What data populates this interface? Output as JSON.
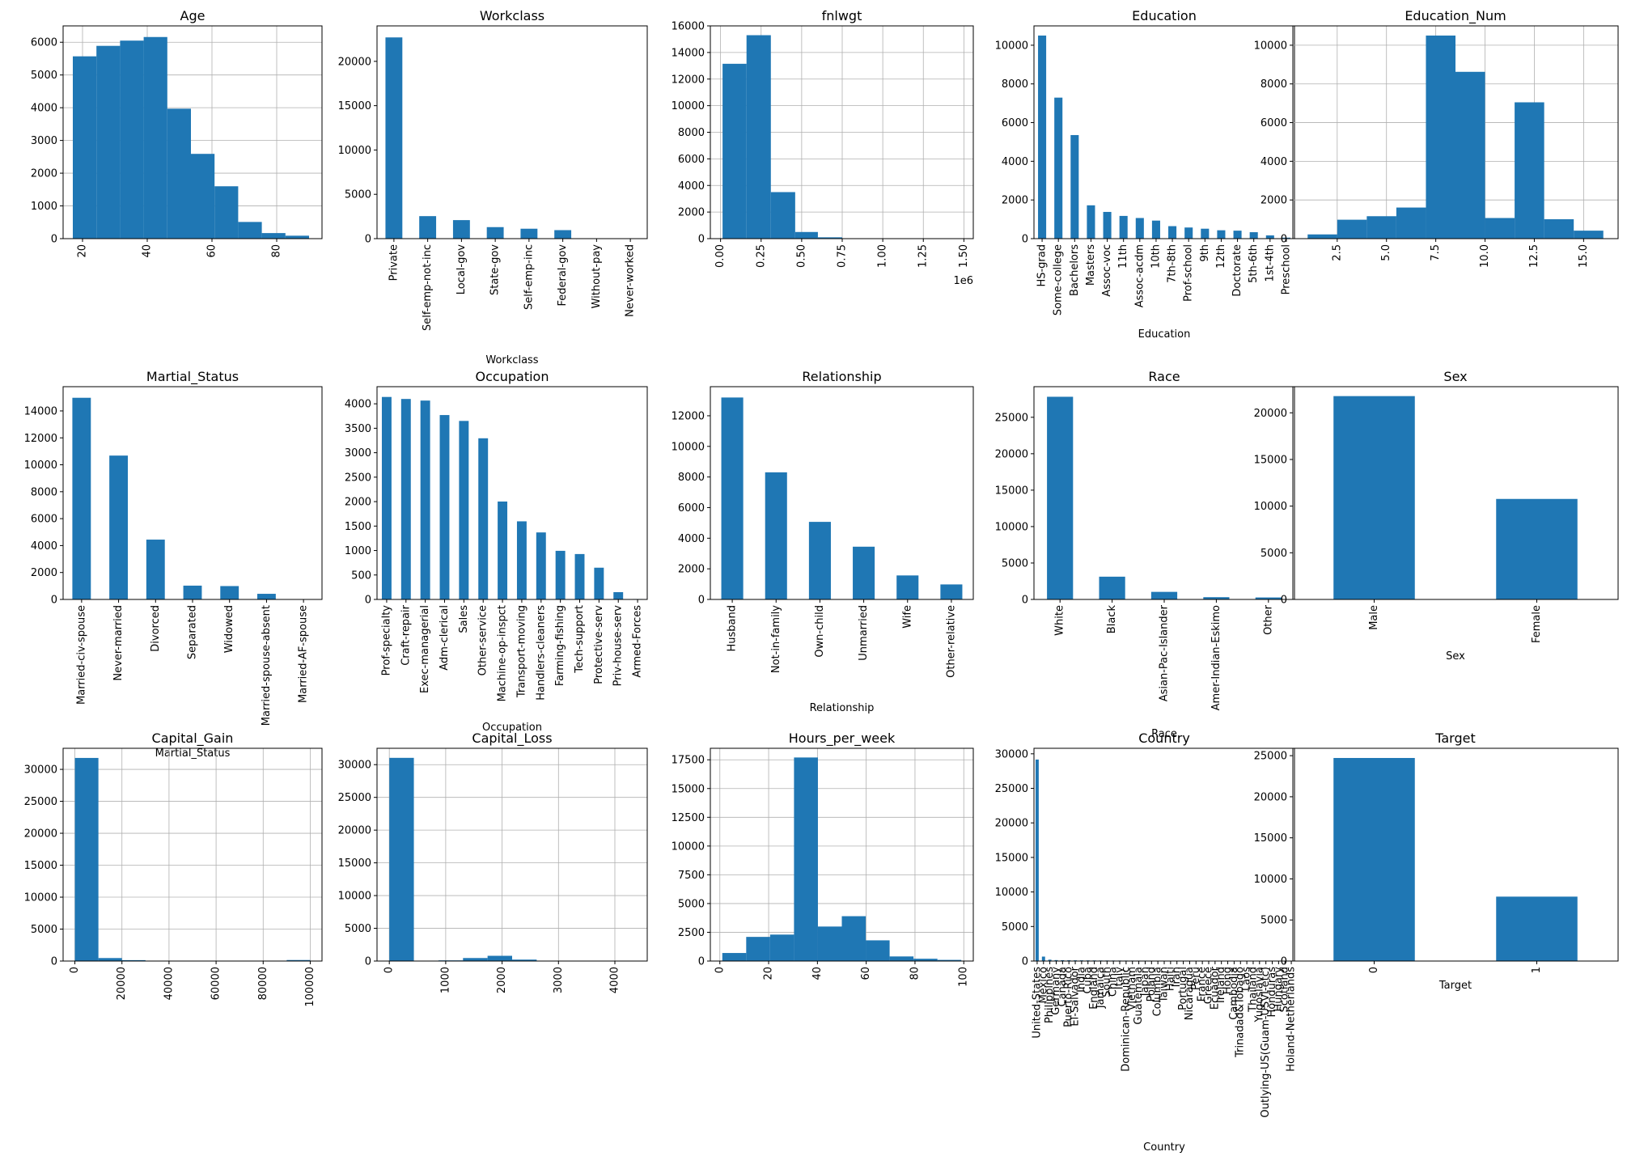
{
  "chart_data": [
    {
      "id": "age",
      "type": "histogram",
      "title": "Age",
      "xlabel": "",
      "grid": true,
      "xlim": [
        14,
        94
      ],
      "ylim": [
        0,
        6500
      ],
      "xticks": [
        20,
        40,
        60,
        80
      ],
      "xtick_labels": [
        "20",
        "40",
        "60",
        "80"
      ],
      "yticks": [
        0,
        1000,
        2000,
        3000,
        4000,
        5000,
        6000
      ],
      "ytick_labels": [
        "0",
        "1000",
        "2000",
        "3000",
        "4000",
        "5000",
        "6000"
      ],
      "bins": [
        17,
        24.3,
        31.6,
        38.9,
        46.2,
        53.5,
        60.8,
        68.1,
        75.4,
        82.7,
        90
      ],
      "values": [
        5570,
        5890,
        6050,
        6160,
        3970,
        2590,
        1600,
        510,
        170,
        90
      ]
    },
    {
      "id": "workclass",
      "type": "bar",
      "title": "Workclass",
      "xlabel": "Workclass",
      "grid": false,
      "ylim": [
        0,
        24000
      ],
      "yticks": [
        0,
        5000,
        10000,
        15000,
        20000
      ],
      "ytick_labels": [
        "0",
        "5000",
        "10000",
        "15000",
        "20000"
      ],
      "categories": [
        "Private",
        "Self-emp-not-inc",
        "Local-gov",
        "State-gov",
        "Self-emp-inc",
        "Federal-gov",
        "Without-pay",
        "Never-worked"
      ],
      "values": [
        22700,
        2540,
        2090,
        1300,
        1120,
        960,
        14,
        7
      ]
    },
    {
      "id": "fnlwgt",
      "type": "histogram",
      "title": "fnlwgt",
      "xlabel": "",
      "grid": true,
      "offset_text": "1e6",
      "xlim": [
        -0.063,
        1.558
      ],
      "ylim": [
        0,
        16000
      ],
      "xticks": [
        0,
        0.25,
        0.5,
        0.75,
        1.0,
        1.25,
        1.5
      ],
      "xtick_labels": [
        "0.00",
        "0.25",
        "0.50",
        "0.75",
        "1.00",
        "1.25",
        "1.50"
      ],
      "yticks": [
        0,
        2000,
        4000,
        6000,
        8000,
        10000,
        12000,
        14000,
        16000
      ],
      "ytick_labels": [
        "0",
        "2000",
        "4000",
        "6000",
        "8000",
        "10000",
        "12000",
        "14000",
        "16000"
      ],
      "bins": [
        0.0123,
        0.16,
        0.31,
        0.46,
        0.6,
        0.75,
        0.9,
        1.05,
        1.19,
        1.34,
        1.49
      ],
      "values": [
        13150,
        15300,
        3500,
        500,
        100,
        30,
        10,
        5,
        2,
        2
      ]
    },
    {
      "id": "education",
      "type": "bar",
      "title": "Education",
      "xlabel": "Education",
      "grid": false,
      "ylim": [
        0,
        11000
      ],
      "yticks": [
        0,
        2000,
        4000,
        6000,
        8000,
        10000
      ],
      "ytick_labels": [
        "0",
        "2000",
        "4000",
        "6000",
        "8000",
        "10000"
      ],
      "categories": [
        "HS-grad",
        "Some-college",
        "Bachelors",
        "Masters",
        "Assoc-voc",
        "11th",
        "Assoc-acdm",
        "10th",
        "7th-8th",
        "Prof-school",
        "9th",
        "12th",
        "Doctorate",
        "5th-6th",
        "1st-4th",
        "Preschool"
      ],
      "values": [
        10501,
        7291,
        5355,
        1723,
        1382,
        1175,
        1067,
        933,
        646,
        576,
        514,
        433,
        413,
        333,
        168,
        51
      ]
    },
    {
      "id": "education_num",
      "type": "histogram",
      "title": "Education_Num",
      "xlabel": "",
      "grid": true,
      "xlim": [
        0.25,
        16.75
      ],
      "ylim": [
        0,
        11000
      ],
      "xticks": [
        2.5,
        5,
        7.5,
        10,
        12.5,
        15
      ],
      "xtick_labels": [
        "2.5",
        "5.0",
        "7.5",
        "10.0",
        "12.5",
        "15.0"
      ],
      "yticks": [
        0,
        2000,
        4000,
        6000,
        8000,
        10000
      ],
      "ytick_labels": [
        "0",
        "2000",
        "4000",
        "6000",
        "8000",
        "10000"
      ],
      "bins": [
        1,
        2.5,
        4,
        5.5,
        7,
        8.5,
        10,
        11.5,
        13,
        14.5,
        16
      ],
      "values": [
        219,
        979,
        1160,
        1608,
        10501,
        8625,
        1067,
        7048,
        1003,
        413
      ]
    },
    {
      "id": "marital_status",
      "type": "bar",
      "title": "Martial_Status",
      "xlabel": "Martial_Status",
      "grid": false,
      "ylim": [
        0,
        15800
      ],
      "yticks": [
        0,
        2000,
        4000,
        6000,
        8000,
        10000,
        12000,
        14000
      ],
      "ytick_labels": [
        "0",
        "2000",
        "4000",
        "6000",
        "8000",
        "10000",
        "12000",
        "14000"
      ],
      "categories": [
        "Married-civ-spouse",
        "Never-married",
        "Divorced",
        "Separated",
        "Widowed",
        "Married-spouse-absent",
        "Married-AF-spouse"
      ],
      "values": [
        14976,
        10683,
        4443,
        1025,
        993,
        418,
        23
      ]
    },
    {
      "id": "occupation",
      "type": "bar",
      "title": "Occupation",
      "xlabel": "Occupation",
      "grid": false,
      "ylim": [
        0,
        4350
      ],
      "yticks": [
        0,
        500,
        1000,
        1500,
        2000,
        2500,
        3000,
        3500,
        4000
      ],
      "ytick_labels": [
        "0",
        "500",
        "1000",
        "1500",
        "2000",
        "2500",
        "3000",
        "3500",
        "4000"
      ],
      "categories": [
        "Prof-specialty",
        "Craft-repair",
        "Exec-managerial",
        "Adm-clerical",
        "Sales",
        "Other-service",
        "Machine-op-inspct",
        "Transport-moving",
        "Handlers-cleaners",
        "Farming-fishing",
        "Tech-support",
        "Protective-serv",
        "Priv-house-serv",
        "Armed-Forces"
      ],
      "values": [
        4140,
        4099,
        4066,
        3770,
        3650,
        3295,
        2002,
        1597,
        1370,
        994,
        928,
        649,
        149,
        9
      ]
    },
    {
      "id": "relationship",
      "type": "bar",
      "title": "Relationship",
      "xlabel": "Relationship",
      "grid": false,
      "ylim": [
        0,
        13900
      ],
      "yticks": [
        0,
        2000,
        4000,
        6000,
        8000,
        10000,
        12000
      ],
      "ytick_labels": [
        "0",
        "2000",
        "4000",
        "6000",
        "8000",
        "10000",
        "12000"
      ],
      "categories": [
        "Husband",
        "Not-in-family",
        "Own-child",
        "Unmarried",
        "Wife",
        "Other-relative"
      ],
      "values": [
        13193,
        8305,
        5068,
        3446,
        1568,
        981
      ]
    },
    {
      "id": "race",
      "type": "bar",
      "title": "Race",
      "xlabel": "Race",
      "grid": false,
      "ylim": [
        0,
        29200
      ],
      "yticks": [
        0,
        5000,
        10000,
        15000,
        20000,
        25000
      ],
      "ytick_labels": [
        "0",
        "5000",
        "10000",
        "15000",
        "20000",
        "25000"
      ],
      "categories": [
        "White",
        "Black",
        "Asian-Pac-Islander",
        "Amer-Indian-Eskimo",
        "Other"
      ],
      "values": [
        27816,
        3124,
        1039,
        311,
        271
      ]
    },
    {
      "id": "sex",
      "type": "bar",
      "title": "Sex",
      "xlabel": "Sex",
      "grid": false,
      "ylim": [
        0,
        22800
      ],
      "yticks": [
        0,
        5000,
        10000,
        15000,
        20000
      ],
      "ytick_labels": [
        "0",
        "5000",
        "10000",
        "15000",
        "20000"
      ],
      "categories": [
        "Male",
        "Female"
      ],
      "values": [
        21790,
        10771
      ]
    },
    {
      "id": "capital_gain",
      "type": "histogram",
      "title": "Capital_Gain",
      "xlabel": "",
      "grid": true,
      "xlim": [
        -5000,
        105000
      ],
      "ylim": [
        0,
        33300
      ],
      "xticks": [
        0,
        20000,
        40000,
        60000,
        80000,
        100000
      ],
      "xtick_labels": [
        "0",
        "20000",
        "40000",
        "60000",
        "80000",
        "100000"
      ],
      "yticks": [
        0,
        5000,
        10000,
        15000,
        20000,
        25000,
        30000
      ],
      "ytick_labels": [
        "0",
        "5000",
        "10000",
        "15000",
        "20000",
        "25000",
        "30000"
      ],
      "bins": [
        0,
        9999.9,
        19999.8,
        29999.7,
        39999.6,
        49999.5,
        59999.4,
        69999.3,
        79999.2,
        89999.1,
        99999
      ],
      "values": [
        31790,
        470,
        140,
        15,
        3,
        0,
        0,
        0,
        0,
        160
      ]
    },
    {
      "id": "capital_loss",
      "type": "histogram",
      "title": "Capital_Loss",
      "xlabel": "",
      "grid": true,
      "xlim": [
        -218,
        4574
      ],
      "ylim": [
        0,
        32500
      ],
      "xticks": [
        0,
        1000,
        2000,
        3000,
        4000
      ],
      "xtick_labels": [
        "0",
        "1000",
        "2000",
        "3000",
        "4000"
      ],
      "yticks": [
        0,
        5000,
        10000,
        15000,
        20000,
        25000,
        30000
      ],
      "ytick_labels": [
        "0",
        "5000",
        "10000",
        "15000",
        "20000",
        "25000",
        "30000"
      ],
      "bins": [
        0,
        435.6,
        871.2,
        1306.8,
        1742.4,
        2178,
        2613.6,
        3049.2,
        3484.8,
        3920.4,
        4356
      ],
      "values": [
        31040,
        20,
        100,
        460,
        800,
        220,
        20,
        20,
        2,
        4
      ]
    },
    {
      "id": "hours_per_week",
      "type": "histogram",
      "title": "Hours_per_week",
      "xlabel": "",
      "grid": true,
      "xlim": [
        -3.9,
        103.9
      ],
      "ylim": [
        0,
        18500
      ],
      "xticks": [
        0,
        20,
        40,
        60,
        80,
        100
      ],
      "xtick_labels": [
        "0",
        "20",
        "40",
        "60",
        "80",
        "100"
      ],
      "yticks": [
        0,
        2500,
        5000,
        7500,
        10000,
        12500,
        15000,
        17500
      ],
      "ytick_labels": [
        "0",
        "2500",
        "5000",
        "7500",
        "10000",
        "12500",
        "15000",
        "17500"
      ],
      "bins": [
        1,
        10.8,
        20.6,
        30.4,
        40.2,
        50,
        59.8,
        69.6,
        79.4,
        89.2,
        99
      ],
      "values": [
        700,
        2100,
        2300,
        17700,
        3000,
        3900,
        1800,
        400,
        200,
        100
      ]
    },
    {
      "id": "country",
      "type": "bar",
      "title": "Country",
      "xlabel": "Country",
      "grid": false,
      "bar_width_factor": 0.5,
      "ylim": [
        0,
        30800
      ],
      "yticks": [
        0,
        5000,
        10000,
        15000,
        20000,
        25000,
        30000
      ],
      "ytick_labels": [
        "0",
        "5000",
        "10000",
        "15000",
        "20000",
        "25000",
        "30000"
      ],
      "categories": [
        "United-States",
        "Mexico",
        "Philippines",
        "Germany",
        "Canada",
        "Puerto-Rico",
        "El-Salvador",
        "India",
        "Cuba",
        "England",
        "Jamaica",
        "South",
        "China",
        "Italy",
        "Dominican-Republic",
        "Vietnam",
        "Guatemala",
        "Japan",
        "Poland",
        "Columbia",
        "Taiwan",
        "Haiti",
        "Iran",
        "Portugal",
        "Nicaragua",
        "Peru",
        "France",
        "Greece",
        "Ecuador",
        "Ireland",
        "Hong",
        "Cambodia",
        "Trinadad&Tobago",
        "Laos",
        "Thailand",
        "Yugoslavia",
        "Outlying-US(Guam-USVI-etc)",
        "Honduras",
        "Hungary",
        "Scotland",
        "Holand-Netherlands"
      ],
      "values": [
        29170,
        643,
        198,
        137,
        121,
        114,
        106,
        100,
        95,
        90,
        81,
        80,
        75,
        73,
        70,
        67,
        64,
        62,
        60,
        59,
        51,
        44,
        43,
        37,
        34,
        31,
        29,
        29,
        28,
        24,
        20,
        19,
        19,
        18,
        18,
        16,
        14,
        13,
        13,
        12,
        1
      ]
    },
    {
      "id": "target",
      "type": "bar",
      "title": "Target",
      "xlabel": "Target",
      "grid": false,
      "ylim": [
        0,
        25900
      ],
      "yticks": [
        0,
        5000,
        10000,
        15000,
        20000,
        25000
      ],
      "ytick_labels": [
        "0",
        "5000",
        "10000",
        "15000",
        "20000",
        "25000"
      ],
      "categories": [
        "0",
        "1"
      ],
      "values": [
        24720,
        7841
      ]
    }
  ],
  "colors": {
    "bar": "#1f77b4",
    "grid": "#b0b0b0",
    "axis": "#000000",
    "text": "#000000",
    "background": "#ffffff"
  }
}
